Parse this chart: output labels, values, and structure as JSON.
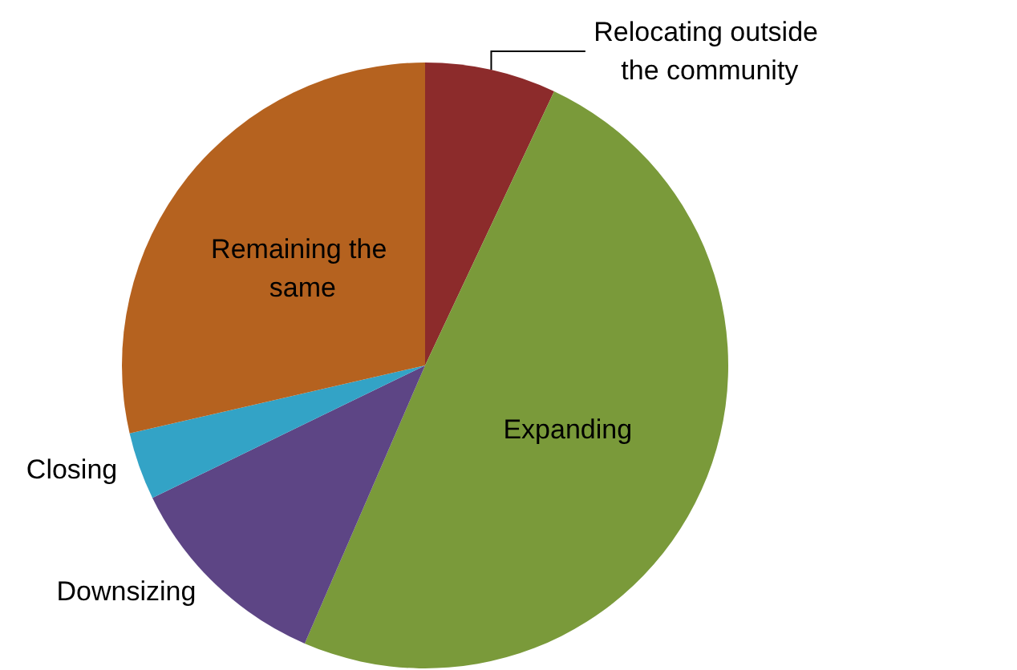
{
  "chart_data": {
    "type": "pie",
    "categories": [
      "Relocating outside the community",
      "Expanding",
      "Downsizing",
      "Closing",
      "Remaining the same"
    ],
    "values": [
      7,
      49.5,
      11.3,
      3.6,
      28.6
    ],
    "colors": [
      "#8c2b2b",
      "#7a9a3a",
      "#5d4585",
      "#33a3c6",
      "#b5621f"
    ],
    "legend": false
  }
}
